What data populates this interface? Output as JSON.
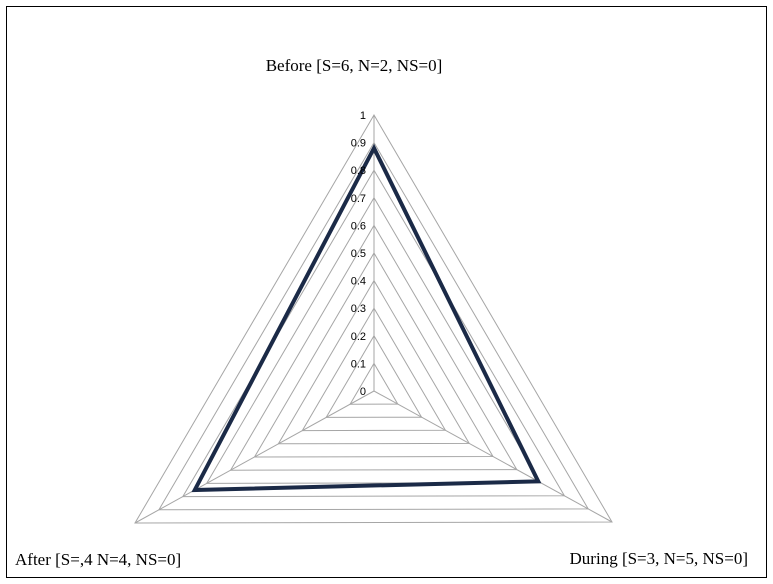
{
  "chart_data": {
    "type": "radar",
    "axes": [
      "Before [S=6, N=2, NS=0]",
      "During [S=3, N=5, NS=0]",
      "After [S=,4 N=4, NS=0]"
    ],
    "ticks": [
      "0",
      "0.1",
      "0.2",
      "0.3",
      "0.4",
      "0.5",
      "0.6",
      "0.7",
      "0.8",
      "0.9",
      "1"
    ],
    "range": [
      0,
      1
    ],
    "grid": true,
    "legend": "none",
    "series": [
      {
        "values": [
          0.88,
          0.69,
          0.75
        ],
        "color": "#1b2a47"
      }
    ],
    "gridline_color": "#a6a6a6"
  }
}
